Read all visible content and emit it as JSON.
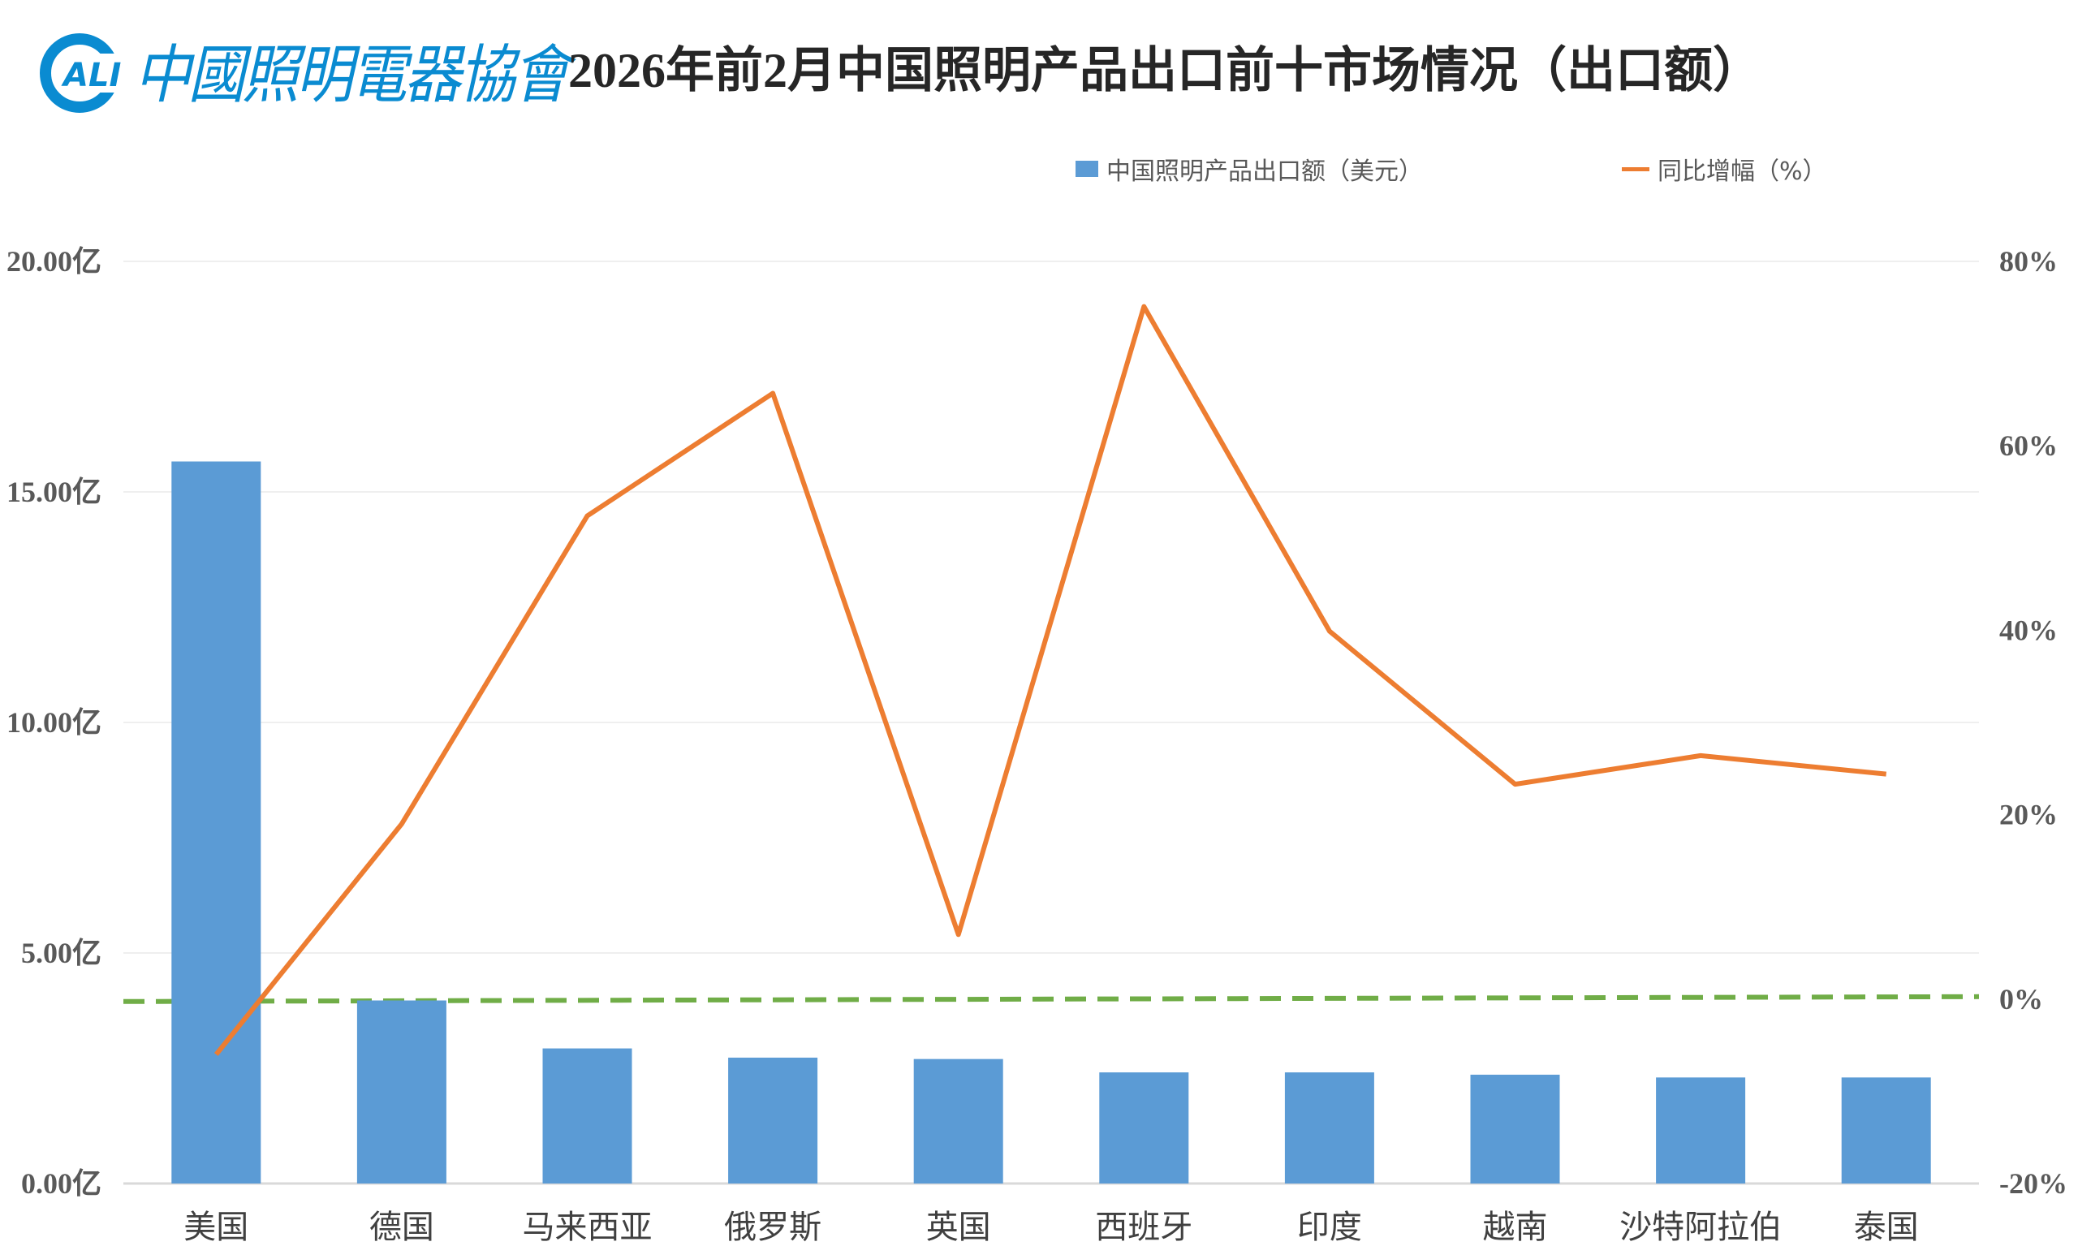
{
  "title": "2026年前2月中国照明产品出口前十市场情况（出口额）",
  "logo": {
    "text": "中國照明電器協會",
    "badge": "ALI",
    "color": "#0a8bd1"
  },
  "chart_data": {
    "type": "bar+line",
    "title": "2026年前2月中国照明产品出口前十市场情况（出口额）",
    "categories": [
      "美国",
      "德国",
      "马来西亚",
      "俄罗斯",
      "英国",
      "西班牙",
      "印度",
      "越南",
      "沙特阿拉伯",
      "泰国"
    ],
    "series": [
      {
        "name": "中国照明产品出口额（美元）",
        "type": "bar",
        "axis": "left",
        "unit": "亿",
        "color": "#5b9bd5",
        "values": [
          15.66,
          3.97,
          2.93,
          2.73,
          2.7,
          2.41,
          2.41,
          2.36,
          2.3,
          2.3
        ]
      },
      {
        "name": "同比增幅（%）",
        "type": "line",
        "axis": "right",
        "unit": "%",
        "color": "#ed7d31",
        "values": [
          -6.0,
          19.0,
          52.4,
          65.7,
          7.0,
          75.1,
          39.9,
          23.3,
          26.4,
          24.4
        ]
      }
    ],
    "reference_line": {
      "axis": "right",
      "value": 0,
      "style": "dashed",
      "color": "#70ad47"
    },
    "left_axis": {
      "ylim": [
        0,
        20
      ],
      "ticks": [
        "0.00亿",
        "5.00亿",
        "10.00亿",
        "15.00亿",
        "20.00亿"
      ],
      "tick_values": [
        0,
        5,
        10,
        15,
        20
      ]
    },
    "right_axis": {
      "ylim": [
        -20,
        80
      ],
      "ticks": [
        "-20%",
        "0%",
        "20%",
        "40%",
        "60%",
        "80%"
      ],
      "tick_values": [
        -20,
        0,
        20,
        40,
        60,
        80
      ]
    },
    "grid": true,
    "legend": "top"
  }
}
